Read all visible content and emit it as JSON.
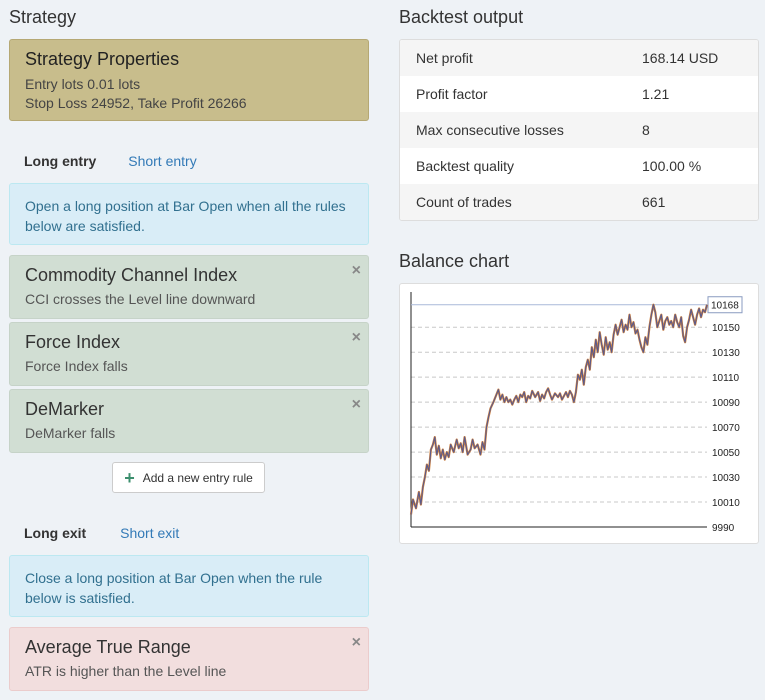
{
  "strategy": {
    "title": "Strategy",
    "properties": {
      "heading": "Strategy Properties",
      "lots": "Entry lots 0.01 lots",
      "sltp": "Stop Loss 24952, Take Profit 26266"
    }
  },
  "entry": {
    "tab_active": "Long entry",
    "tab_other": "Short entry",
    "info": "Open a long position at Bar Open when all the rules below are satisfied.",
    "rules": [
      {
        "name": "Commodity Channel Index",
        "desc": "CCI crosses the Level line downward"
      },
      {
        "name": "Force Index",
        "desc": "Force Index falls"
      },
      {
        "name": "DeMarker",
        "desc": "DeMarker falls"
      }
    ],
    "add_button": "Add a new entry rule"
  },
  "exit": {
    "tab_active": "Long exit",
    "tab_other": "Short exit",
    "info": "Close a long position at Bar Open when the rule below is satisfied.",
    "rules": [
      {
        "name": "Average True Range",
        "desc": "ATR is higher than the Level line"
      }
    ]
  },
  "icons": {
    "remove": "×",
    "add": "+"
  },
  "backtest": {
    "title": "Backtest output",
    "stats": [
      {
        "label": "Net profit",
        "value": "168.14 USD"
      },
      {
        "label": "Profit factor",
        "value": "1.21"
      },
      {
        "label": "Max consecutive losses",
        "value": "8"
      },
      {
        "label": "Backtest quality",
        "value": "100.00 %"
      },
      {
        "label": "Count of trades",
        "value": "661"
      }
    ]
  },
  "balance_chart": {
    "title": "Balance chart"
  },
  "chart_data": {
    "type": "line",
    "title": "",
    "xlabel": "",
    "ylabel": "",
    "ylim": [
      9990,
      10175
    ],
    "yticks": [
      10010,
      10030,
      10050,
      10070,
      10090,
      10110,
      10130,
      10150,
      9990
    ],
    "last_value_label": "10168",
    "grid": true,
    "colors": {
      "line": "#5a5a8c",
      "accent": "#d2823c"
    },
    "series": [
      {
        "x": [
          0,
          2,
          5,
          8,
          10,
          12,
          14,
          16,
          18,
          20,
          22,
          24,
          26,
          28,
          30,
          32,
          34,
          36,
          38,
          40,
          43,
          46,
          48,
          50,
          52,
          54,
          57,
          60,
          62,
          64,
          67,
          70,
          72,
          74,
          76,
          78,
          80,
          83,
          86,
          88,
          90,
          92,
          94,
          96,
          98,
          100,
          102,
          104,
          106,
          108,
          110,
          112,
          114,
          116,
          118,
          120,
          122,
          125,
          128,
          130,
          132,
          134,
          136,
          138,
          140,
          142,
          145,
          148,
          150,
          152,
          154,
          156,
          158,
          160,
          162,
          164,
          166,
          168,
          170,
          172,
          174,
          176,
          178,
          180,
          182,
          184,
          186,
          188,
          190,
          192,
          194,
          196,
          198,
          200,
          202,
          204,
          206,
          208,
          210,
          212,
          214,
          216,
          218,
          220,
          222,
          224,
          226,
          228,
          230,
          232,
          234,
          236,
          238,
          240,
          242,
          244,
          246,
          248,
          250,
          252,
          254,
          256,
          258,
          260,
          262,
          264,
          266,
          268,
          270,
          272,
          274,
          276,
          278,
          280,
          282,
          284,
          286,
          288,
          290,
          292,
          294,
          296,
          298
        ],
        "y": [
          10000,
          10012,
          10005,
          10018,
          10008,
          10022,
          10030,
          10040,
          10035,
          10052,
          10056,
          10062,
          10048,
          10055,
          10045,
          10052,
          10044,
          10050,
          10046,
          10056,
          10050,
          10060,
          10053,
          10057,
          10050,
          10062,
          10048,
          10052,
          10060,
          10053,
          10056,
          10048,
          10058,
          10052,
          10070,
          10078,
          10085,
          10090,
          10096,
          10100,
          10092,
          10096,
          10090,
          10094,
          10090,
          10092,
          10088,
          10092,
          10095,
          10090,
          10096,
          10094,
          10098,
          10090,
          10095,
          10093,
          10099,
          10094,
          10098,
          10091,
          10096,
          10093,
          10098,
          10101,
          10096,
          10092,
          10097,
          10094,
          10097,
          10092,
          10095,
          10098,
          10094,
          10099,
          10096,
          10090,
          10098,
          10112,
          10108,
          10116,
          10104,
          10118,
          10124,
          10116,
          10134,
          10126,
          10140,
          10130,
          10146,
          10136,
          10128,
          10142,
          10132,
          10138,
          10130,
          10144,
          10152,
          10144,
          10150,
          10156,
          10146,
          10152,
          10148,
          10160,
          10150,
          10154,
          10145,
          10148,
          10140,
          10134,
          10130,
          10142,
          10136,
          10150,
          10160,
          10168,
          10162,
          10150,
          10155,
          10160,
          10148,
          10155,
          10158,
          10152,
          10155,
          10150,
          10160,
          10154,
          10150,
          10158,
          10143,
          10138,
          10150,
          10156,
          10164,
          10158,
          10152,
          10160,
          10165,
          10158,
          10164,
          10162,
          10168
        ]
      }
    ]
  }
}
